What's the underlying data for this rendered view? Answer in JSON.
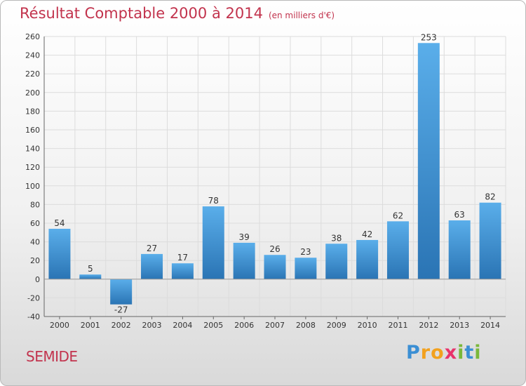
{
  "chart_data": {
    "type": "bar",
    "title": "Résultat Comptable 2000 à 2014",
    "subtitle": "(en milliers d'€)",
    "xlabel": "",
    "ylabel": "",
    "categories": [
      "2000",
      "2001",
      "2002",
      "2003",
      "2004",
      "2005",
      "2006",
      "2007",
      "2008",
      "2009",
      "2010",
      "2011",
      "2012",
      "2013",
      "2014"
    ],
    "values": [
      54,
      5,
      -27,
      27,
      17,
      78,
      39,
      26,
      23,
      38,
      42,
      62,
      253,
      63,
      82
    ],
    "data_labels": [
      "54",
      "5",
      "-27",
      "27",
      "17",
      "78",
      "39",
      "26",
      "23",
      "38",
      "42",
      "62",
      "253",
      "63",
      "82"
    ],
    "ylim": [
      -40,
      260
    ],
    "ytick_values": [
      -40,
      -20,
      0,
      20,
      40,
      60,
      80,
      100,
      120,
      140,
      160,
      180,
      200,
      220,
      240,
      260
    ],
    "ytick_labels": [
      "-40",
      "-20",
      "0",
      "20",
      "40",
      "60",
      "80",
      "100",
      "120",
      "140",
      "160",
      "180",
      "200",
      "220",
      "240",
      "260"
    ],
    "grid": true
  },
  "location": "SEMIDE",
  "brand": {
    "name": "Proxiti",
    "letters": [
      {
        "char": "P",
        "color": "#3b8fd4"
      },
      {
        "char": "r",
        "color": "#f2a11e"
      },
      {
        "char": "o",
        "color": "#f2a11e"
      },
      {
        "char": "x",
        "color": "#e8336b"
      },
      {
        "char": "i",
        "color": "#7ab83a"
      },
      {
        "char": "t",
        "color": "#3b8fd4"
      },
      {
        "char": "i",
        "color": "#7ab83a"
      }
    ]
  },
  "colors": {
    "title": "#c2334d",
    "bar_light": "#5aaeea",
    "bar_dark": "#2a74b4",
    "grid": "#dcdcdc",
    "axis_text": "#333333"
  }
}
